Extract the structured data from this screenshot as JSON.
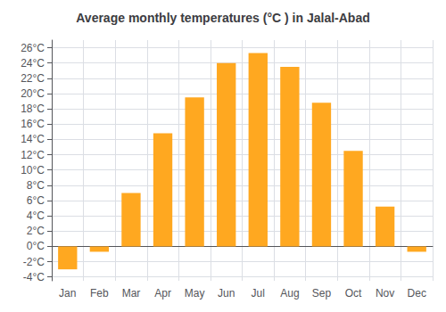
{
  "chart_data": {
    "type": "bar",
    "title": "Average monthly temperatures (°C ) in Jalal-Abad",
    "categories": [
      "Jan",
      "Feb",
      "Mar",
      "Apr",
      "May",
      "Jun",
      "Jul",
      "Aug",
      "Sep",
      "Oct",
      "Nov",
      "Dec"
    ],
    "values": [
      -3.0,
      -0.7,
      7.0,
      14.8,
      19.5,
      24.0,
      25.3,
      23.5,
      18.8,
      12.5,
      5.2,
      -0.7
    ],
    "color": "#FFA820",
    "ylim": [
      -4.5,
      27
    ],
    "yticks": [
      {
        "value": -4,
        "label": "-4°C"
      },
      {
        "value": -2,
        "label": "-2°C"
      },
      {
        "value": 0,
        "label": "0°C"
      },
      {
        "value": 2,
        "label": "2°C"
      },
      {
        "value": 4,
        "label": "4°C"
      },
      {
        "value": 6,
        "label": "6°C"
      },
      {
        "value": 8,
        "label": "8°C"
      },
      {
        "value": 10,
        "label": "10°C"
      },
      {
        "value": 12,
        "label": "12°C"
      },
      {
        "value": 14,
        "label": "14°C"
      },
      {
        "value": 16,
        "label": "16°C"
      },
      {
        "value": 18,
        "label": "18°C"
      },
      {
        "value": 20,
        "label": "20°C"
      },
      {
        "value": 22,
        "label": "22°C"
      },
      {
        "value": 24,
        "label": "24°C"
      },
      {
        "value": 26,
        "label": "26°C"
      }
    ],
    "grid": true
  }
}
